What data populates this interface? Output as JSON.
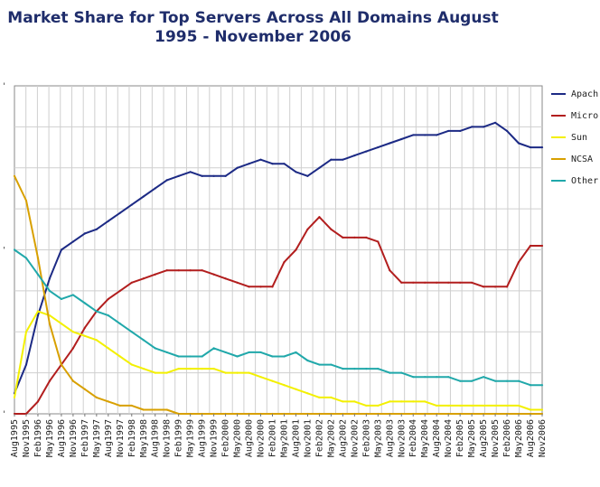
{
  "chart_data": {
    "type": "line",
    "title": "Market Share for Top Servers Across All Domains August 1995 - November 2006",
    "xlabel": "",
    "ylabel": "",
    "grid": true,
    "legend_position": "right",
    "categories": [
      "Aug1995",
      "Nov1995",
      "Feb1996",
      "May1996",
      "Aug1996",
      "Nov1996",
      "Feb1997",
      "May1997",
      "Aug1997",
      "Nov1997",
      "Feb1998",
      "May1998",
      "Aug1998",
      "Nov1998",
      "Feb1999",
      "May1999",
      "Aug1999",
      "Nov1999",
      "Feb2000",
      "May2000",
      "Aug2000",
      "Nov2000",
      "Feb2001",
      "May2001",
      "Aug2001",
      "Nov2001",
      "Feb2002",
      "May2002",
      "Aug2002",
      "Nov2002",
      "Feb2003",
      "May2003",
      "Aug2003",
      "Nov2003",
      "Feb2004",
      "May2004",
      "Aug2004",
      "Nov2004",
      "Feb2005",
      "May2005",
      "Aug2005",
      "Nov2005",
      "Feb2006",
      "May2006",
      "Aug2006",
      "Nov2006"
    ],
    "ylim": [
      0,
      80
    ],
    "y_tick_labels": [
      "'",
      "'",
      "'"
    ],
    "series": [
      {
        "name": "Apache",
        "legend_label": "Apach",
        "color": "#1c2a85",
        "values": [
          5,
          12,
          24,
          33,
          40,
          42,
          44,
          45,
          47,
          49,
          51,
          53,
          55,
          57,
          58,
          59,
          58,
          58,
          58,
          60,
          61,
          62,
          61,
          61,
          59,
          58,
          60,
          62,
          62,
          63,
          64,
          65,
          66,
          67,
          68,
          68,
          68,
          69,
          69,
          70,
          70,
          71,
          69,
          66,
          65,
          65
        ]
      },
      {
        "name": "Microsoft",
        "legend_label": "Micro",
        "color": "#b21e1e",
        "values": [
          0,
          0,
          3,
          8,
          12,
          16,
          21,
          25,
          28,
          30,
          32,
          33,
          34,
          35,
          35,
          35,
          35,
          34,
          33,
          32,
          31,
          31,
          31,
          37,
          40,
          45,
          48,
          45,
          43,
          43,
          43,
          42,
          35,
          32,
          32,
          32,
          32,
          32,
          32,
          32,
          31,
          31,
          31,
          37,
          41,
          41
        ]
      },
      {
        "name": "Sun",
        "legend_label": "Sun",
        "color": "#f3f000",
        "values": [
          4,
          20,
          25,
          24,
          22,
          20,
          19,
          18,
          16,
          14,
          12,
          11,
          10,
          10,
          11,
          11,
          11,
          11,
          10,
          10,
          10,
          9,
          8,
          7,
          6,
          5,
          4,
          4,
          3,
          3,
          2,
          2,
          3,
          3,
          3,
          3,
          2,
          2,
          2,
          2,
          2,
          2,
          2,
          2,
          1,
          1
        ]
      },
      {
        "name": "NCSA",
        "legend_label": "NCSA",
        "color": "#d8a000",
        "values": [
          58,
          52,
          38,
          22,
          12,
          8,
          6,
          4,
          3,
          2,
          2,
          1,
          1,
          1,
          0,
          0,
          0,
          0,
          0,
          0,
          0,
          0,
          0,
          0,
          0,
          0,
          0,
          0,
          0,
          0,
          0,
          0,
          0,
          0,
          0,
          0,
          0,
          0,
          0,
          0,
          0,
          0,
          0,
          0,
          0,
          0
        ]
      },
      {
        "name": "Other",
        "legend_label": "Other",
        "color": "#20a8aa",
        "values": [
          40,
          38,
          34,
          30,
          28,
          29,
          27,
          25,
          24,
          22,
          20,
          18,
          16,
          15,
          14,
          14,
          14,
          16,
          15,
          14,
          15,
          15,
          14,
          14,
          15,
          13,
          12,
          12,
          11,
          11,
          11,
          11,
          10,
          10,
          9,
          9,
          9,
          9,
          8,
          8,
          9,
          8,
          8,
          8,
          7,
          7
        ]
      }
    ]
  }
}
